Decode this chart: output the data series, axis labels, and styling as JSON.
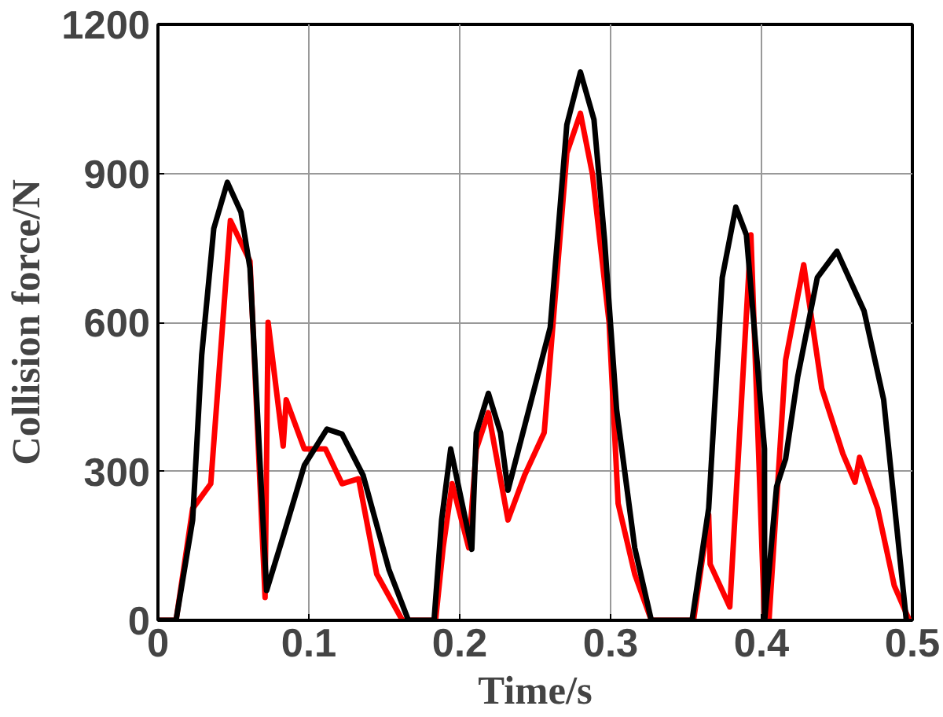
{
  "chart_data": {
    "type": "line",
    "xlabel": "Time/s",
    "ylabel": "Collision force/N",
    "xlim": [
      0,
      0.5
    ],
    "ylim": [
      0,
      1200
    ],
    "xticks": [
      0,
      0.1,
      0.2,
      0.3,
      0.4,
      0.5
    ],
    "yticks": [
      0,
      300,
      600,
      900,
      1200
    ],
    "grid": true,
    "line_style": "solid",
    "series": [
      {
        "color": "#ff0000",
        "x": [
          0,
          0.012,
          0.023,
          0.035,
          0.048,
          0.061,
          0.071,
          0.073,
          0.083,
          0.085,
          0.097,
          0.111,
          0.122,
          0.133,
          0.145,
          0.162,
          0.184,
          0.189,
          0.195,
          0.206,
          0.211,
          0.219,
          0.232,
          0.243,
          0.256,
          0.271,
          0.28,
          0.288,
          0.299,
          0.305,
          0.316,
          0.327,
          0.355,
          0.365,
          0.366,
          0.379,
          0.393,
          0.402,
          0.405,
          0.416,
          0.428,
          0.44,
          0.454,
          0.462,
          0.465,
          0.477,
          0.488,
          0.498
        ],
        "values": [
          0,
          0,
          225,
          275,
          805,
          723,
          46,
          600,
          351,
          444,
          345,
          345,
          275,
          285,
          93,
          0,
          0,
          146,
          275,
          146,
          345,
          418,
          202,
          292,
          378,
          941,
          1021,
          898,
          600,
          235,
          93,
          0,
          0,
          212,
          113,
          27,
          776,
          0,
          0,
          524,
          716,
          467,
          335,
          278,
          328,
          225,
          70,
          0
        ]
      },
      {
        "color": "#000000",
        "x": [
          0,
          0.012,
          0.023,
          0.029,
          0.037,
          0.046,
          0.055,
          0.061,
          0.072,
          0.083,
          0.097,
          0.112,
          0.122,
          0.136,
          0.153,
          0.166,
          0.183,
          0.188,
          0.194,
          0.208,
          0.211,
          0.219,
          0.227,
          0.232,
          0.26,
          0.271,
          0.28,
          0.289,
          0.296,
          0.304,
          0.316,
          0.327,
          0.354,
          0.365,
          0.374,
          0.383,
          0.39,
          0.402,
          0.4021,
          0.41,
          0.416,
          0.424,
          0.437,
          0.45,
          0.468,
          0.481,
          0.496
        ],
        "values": [
          0,
          0,
          202,
          534,
          789,
          882,
          822,
          709,
          60,
          169,
          312,
          385,
          375,
          292,
          103,
          0,
          0,
          202,
          345,
          143,
          378,
          457,
          378,
          262,
          590,
          998,
          1104,
          1008,
          766,
          424,
          146,
          0,
          0,
          225,
          690,
          832,
          776,
          345,
          0,
          269,
          325,
          490,
          690,
          743,
          623,
          444,
          0
        ]
      }
    ]
  }
}
